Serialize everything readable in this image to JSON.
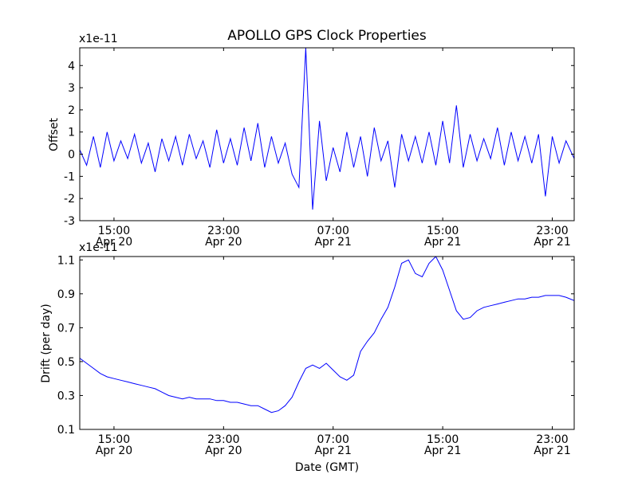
{
  "figure": {
    "title": "APOLLO GPS Clock Properties",
    "xlabel": "Date (GMT)"
  },
  "colors": {
    "line": "#0000ff",
    "axes": "#000000",
    "background": "#ffffff"
  },
  "chart_data": [
    {
      "type": "line",
      "name": "offset",
      "ylabel": "Offset",
      "scale_label": "x1e-11",
      "xlim": [
        12.5,
        48.6
      ],
      "ylim": [
        -3,
        4.8
      ],
      "yticks": [
        -3,
        -2,
        -1,
        0,
        1,
        2,
        3,
        4
      ],
      "xticks": [
        {
          "x": 15,
          "time": "15:00",
          "date": "Apr 20"
        },
        {
          "x": 23,
          "time": "23:00",
          "date": "Apr 20"
        },
        {
          "x": 31,
          "time": "07:00",
          "date": "Apr 21"
        },
        {
          "x": 39,
          "time": "15:00",
          "date": "Apr 21"
        },
        {
          "x": 47,
          "time": "23:00",
          "date": "Apr 21"
        }
      ],
      "grid": false,
      "x": [
        12.5,
        13.0,
        13.5,
        14.0,
        14.5,
        15.0,
        15.5,
        16.0,
        16.5,
        17.0,
        17.5,
        18.0,
        18.5,
        19.0,
        19.5,
        20.0,
        20.5,
        21.0,
        21.5,
        22.0,
        22.5,
        23.0,
        23.5,
        24.0,
        24.5,
        25.0,
        25.5,
        26.0,
        26.5,
        27.0,
        27.5,
        28.0,
        28.5,
        29.0,
        29.5,
        30.0,
        30.5,
        31.0,
        31.5,
        32.0,
        32.5,
        33.0,
        33.5,
        34.0,
        34.5,
        35.0,
        35.5,
        36.0,
        36.5,
        37.0,
        37.5,
        38.0,
        38.5,
        39.0,
        39.5,
        40.0,
        40.5,
        41.0,
        41.5,
        42.0,
        42.5,
        43.0,
        43.5,
        44.0,
        44.5,
        45.0,
        45.5,
        46.0,
        46.5,
        47.0,
        47.5,
        48.0,
        48.6
      ],
      "values": [
        0.2,
        -0.5,
        0.8,
        -0.6,
        1.0,
        -0.3,
        0.6,
        -0.2,
        0.9,
        -0.4,
        0.5,
        -0.8,
        0.7,
        -0.3,
        0.8,
        -0.5,
        0.9,
        -0.2,
        0.6,
        -0.6,
        1.1,
        -0.4,
        0.7,
        -0.5,
        1.2,
        -0.3,
        1.4,
        -0.6,
        0.8,
        -0.4,
        0.5,
        -0.9,
        -1.5,
        4.8,
        -2.5,
        1.5,
        -1.2,
        0.3,
        -0.8,
        1.0,
        -0.6,
        0.8,
        -1.0,
        1.2,
        -0.3,
        0.6,
        -1.5,
        0.9,
        -0.3,
        0.8,
        -0.4,
        1.0,
        -0.5,
        1.5,
        -0.4,
        2.2,
        -0.6,
        0.9,
        -0.3,
        0.7,
        -0.2,
        1.2,
        -0.5,
        1.0,
        -0.3,
        0.8,
        -0.4,
        0.9,
        -1.9,
        0.8,
        -0.4,
        0.6,
        -0.2
      ]
    },
    {
      "type": "line",
      "name": "drift",
      "ylabel": "Drift (per day)",
      "scale_label": "x1e-11",
      "xlim": [
        12.5,
        48.6
      ],
      "ylim": [
        0.1,
        1.12
      ],
      "yticks": [
        0.1,
        0.3,
        0.5,
        0.7,
        0.9,
        1.1
      ],
      "xticks": [
        {
          "x": 15,
          "time": "15:00",
          "date": "Apr 20"
        },
        {
          "x": 23,
          "time": "23:00",
          "date": "Apr 20"
        },
        {
          "x": 31,
          "time": "07:00",
          "date": "Apr 21"
        },
        {
          "x": 39,
          "time": "15:00",
          "date": "Apr 21"
        },
        {
          "x": 47,
          "time": "23:00",
          "date": "Apr 21"
        }
      ],
      "grid": false,
      "x": [
        12.5,
        13.0,
        13.5,
        14.0,
        14.5,
        15.0,
        15.5,
        16.0,
        16.5,
        17.0,
        17.5,
        18.0,
        18.5,
        19.0,
        19.5,
        20.0,
        20.5,
        21.0,
        21.5,
        22.0,
        22.5,
        23.0,
        23.5,
        24.0,
        24.5,
        25.0,
        25.5,
        26.0,
        26.5,
        27.0,
        27.5,
        28.0,
        28.5,
        29.0,
        29.5,
        30.0,
        30.5,
        31.0,
        31.5,
        32.0,
        32.5,
        33.0,
        33.5,
        34.0,
        34.5,
        35.0,
        35.5,
        36.0,
        36.5,
        37.0,
        37.5,
        38.0,
        38.5,
        39.0,
        39.5,
        40.0,
        40.5,
        41.0,
        41.5,
        42.0,
        42.5,
        43.0,
        43.5,
        44.0,
        44.5,
        45.0,
        45.5,
        46.0,
        46.5,
        47.0,
        47.5,
        48.0,
        48.6
      ],
      "values": [
        0.52,
        0.49,
        0.46,
        0.43,
        0.41,
        0.4,
        0.39,
        0.38,
        0.37,
        0.36,
        0.35,
        0.34,
        0.32,
        0.3,
        0.29,
        0.28,
        0.29,
        0.28,
        0.28,
        0.28,
        0.27,
        0.27,
        0.26,
        0.26,
        0.25,
        0.24,
        0.24,
        0.22,
        0.2,
        0.21,
        0.24,
        0.29,
        0.38,
        0.46,
        0.48,
        0.46,
        0.49,
        0.45,
        0.41,
        0.39,
        0.42,
        0.56,
        0.62,
        0.67,
        0.75,
        0.82,
        0.94,
        1.08,
        1.1,
        1.02,
        1.0,
        1.08,
        1.12,
        1.04,
        0.92,
        0.8,
        0.75,
        0.76,
        0.8,
        0.82,
        0.83,
        0.84,
        0.85,
        0.86,
        0.87,
        0.87,
        0.88,
        0.88,
        0.89,
        0.89,
        0.89,
        0.88,
        0.86
      ]
    }
  ]
}
